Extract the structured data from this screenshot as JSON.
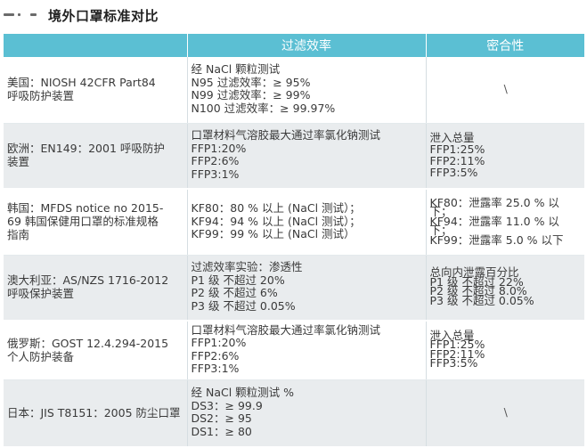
{
  "title": "境外口罩标准对比",
  "headers": [
    "",
    "过滤效率",
    "密合性"
  ],
  "rows": [
    {
      "region": [
        "美国：NIOSH 42CFR Part84",
        "呼吸防护装置"
      ],
      "filtration": [
        "经 NaCl 颗粒测试",
        "N95 过滤效率：≥ 95%",
        "N99 过滤效率：≥ 99%",
        "N100 过滤效率：≥ 99.97%"
      ],
      "fit": [
        "\\"
      ]
    },
    {
      "region": [
        "欧洲：EN149：2001 呼吸防护",
        "装置"
      ],
      "filtration": [
        "口罩材料气溶胶最大通过率氯化钠测试",
        "FFP1:20%",
        "FFP2:6%",
        "FFP3:1%"
      ],
      "fit": [
        "泄入总量",
        "FFP1:25%",
        "FFP2:11%",
        "FFP3:5%"
      ]
    },
    {
      "region": [
        "韩国：MFDS notice no 2015-",
        "69 韩国保健用口罩的标准规格",
        "指南"
      ],
      "filtration": [
        "KF80：80 % 以上 (NaCl 测试）；",
        "KF94：94 % 以上 (NaCl 测试）；",
        "KF99：99 % 以上 (NaCl 测试）"
      ],
      "fit": [
        "KF80：泄露率 25.0 % 以",
        "下；",
        "KF94：泄露率 11.0 % 以",
        "下；",
        "KF99：泄露率 5.0 % 以下"
      ]
    },
    {
      "region": [
        "澳大利亚：AS/NZS 1716-2012",
        "呼吸保护装置"
      ],
      "filtration": [
        "过滤效率实验：渗透性",
        "P1 级 不超过 20%",
        "P2 级 不超过 6%",
        "P3 级 不超过 0.05%"
      ],
      "fit": [
        "总向内泄露百分比",
        "P1 级 不超过 22%",
        "P2 级 不超过 8.0%",
        "P3 级 不超过 0.05%"
      ]
    },
    {
      "region": [
        "俄罗斯：GOST 12.4.294-2015",
        "个人防护装备"
      ],
      "filtration": [
        "口罩材料气溶胶最大通过率氯化钠测试",
        "FFP1:20%",
        "FFP2:6%",
        "FFP3:1%"
      ],
      "fit": [
        "泄入总量",
        "FFP1:25%",
        "FFP2:11%",
        "FFP3:5%"
      ]
    },
    {
      "region": [
        "日本：JIS T8151：2005 防尘口罩"
      ],
      "filtration": [
        "经 NaCl 颗粒测试 %",
        "DS3：≥ 99.9",
        "DS2：≥ 95",
        "DS1：≥ 80"
      ],
      "fit": [
        "\\"
      ]
    }
  ]
}
